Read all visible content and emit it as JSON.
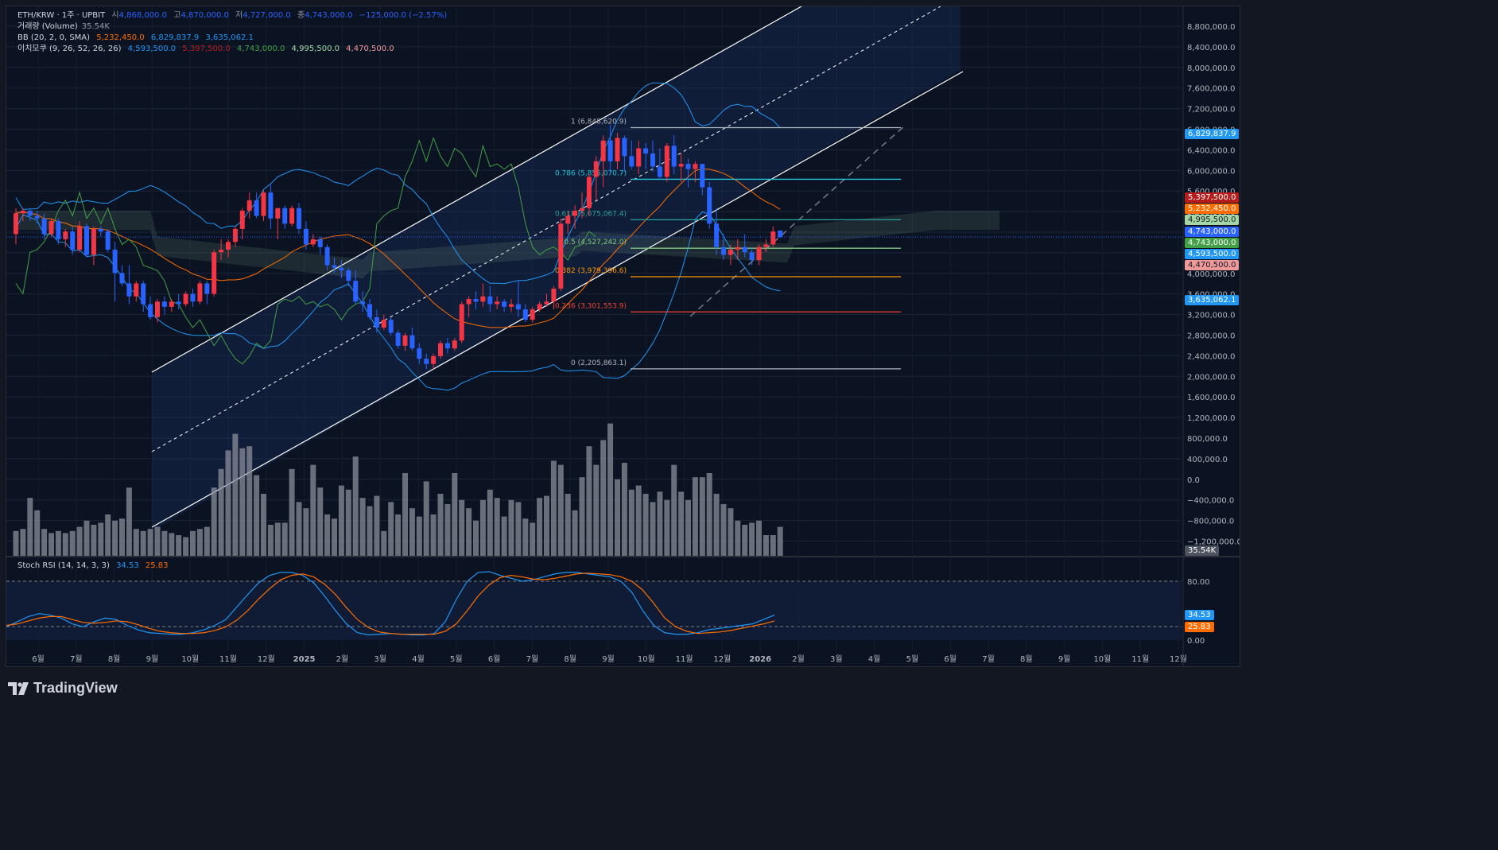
{
  "header": {
    "symbol": "ETH/KRW · 1주 · UPBIT",
    "ohlc": [
      {
        "label": "시",
        "value": "4,868,000.0"
      },
      {
        "label": "고",
        "value": "4,870,000.0"
      },
      {
        "label": "저",
        "value": "4,727,000.0"
      },
      {
        "label": "종",
        "value": "4,743,000.0"
      }
    ],
    "change": "−125,000.0 (−2.57%)",
    "volume_label": "거래량 (Volume)",
    "volume_value": "35.54K",
    "bb_label": "BB (20, 2, 0, SMA)",
    "bb_values": [
      "5,232,450.0",
      "6,829,837.9",
      "3,635,062.1"
    ],
    "ichimoku_label": "이치모쿠 (9, 26, 52, 26, 26)",
    "ichimoku_values": [
      "4,593,500.0",
      "5,397,500.0",
      "4,743,000.0",
      "4,995,500.0",
      "4,470,500.0"
    ],
    "stoch_label": "Stoch RSI (14, 14, 3, 3)",
    "stoch_values": [
      "34.53",
      "25.83"
    ]
  },
  "colors": {
    "up": "#f23645",
    "down": "#2962ff",
    "bb_upper": "#2196f3",
    "bb_basis": "#ff6d00",
    "tenkan": "#2196f3",
    "kijun": "#b71c1c",
    "chikou": "#43a047",
    "spanA": "#a5d6a7",
    "spanB": "#ef9a9a",
    "volume": "#8a8e99",
    "stoch_k": "#2196f3",
    "stoch_d": "#ff6d00",
    "channel": "#ffffff"
  },
  "chart_data": {
    "type": "candlestick",
    "y_ticks": [
      "8,800,000.0",
      "8,400,000.0",
      "8,000,000.0",
      "7,600,000.0",
      "7,200,000.0",
      "6,800,000.0",
      "6,400,000.0",
      "6,000,000.0",
      "5,600,000.0",
      "5,200,000.0",
      "4,800,000.0",
      "4,400,000.0",
      "4,000,000.0",
      "3,600,000.0",
      "3,200,000.0",
      "2,800,000.0",
      "2,400,000.0",
      "2,000,000.0",
      "1,600,000.0",
      "1,200,000.0",
      "800,000.0",
      "400,000.0",
      "0.0",
      "−400,000.0",
      "−800,000.0",
      "−1,200,000.0"
    ],
    "x_ticks": [
      "6월",
      "7월",
      "8월",
      "9월",
      "10월",
      "11월",
      "12월",
      "2025",
      "2월",
      "3월",
      "4월",
      "5월",
      "6월",
      "7월",
      "8월",
      "9월",
      "10월",
      "11월",
      "12월",
      "2026",
      "2월",
      "3월",
      "4월",
      "5월",
      "6월",
      "7월",
      "8월",
      "9월",
      "10월",
      "11월",
      "12월"
    ],
    "price_badges": [
      {
        "value": "6,829,837.9",
        "color": "#2196f3"
      },
      {
        "value": "5,397,500.0",
        "color": "#b71c1c"
      },
      {
        "value": "5,232,450.0",
        "color": "#ff6d00"
      },
      {
        "value": "4,995,500.0",
        "color": "#a5d6a7"
      },
      {
        "value": "4,743,000.0",
        "color": "#2962ff"
      },
      {
        "value": "4,743,000.0",
        "color": "#43a047"
      },
      {
        "value": "4,593,500.0",
        "color": "#2196f3"
      },
      {
        "value": "4,470,500.0",
        "color": "#ef9a9a"
      },
      {
        "value": "3,635,062.1",
        "color": "#2196f3"
      }
    ],
    "fib_levels": [
      {
        "ratio": "1",
        "price": 6848620.9,
        "label": "1 (6,848,620.9)",
        "color": "#b2b5be"
      },
      {
        "ratio": "0.786",
        "price": 5855070.7,
        "label": "0.786 (5,855,070.7)",
        "color": "#26c6da"
      },
      {
        "ratio": "0.618",
        "price": 5075067.4,
        "label": "0.618 (5,075,067.4)",
        "color": "#26a69a"
      },
      {
        "ratio": "0.5",
        "price": 4527242.0,
        "label": "0.5 (4,527,242.0)",
        "color": "#81c784"
      },
      {
        "ratio": "0.382",
        "price": 3979396.6,
        "label": "0.382 (3,979,396.6)",
        "color": "#ff9800"
      },
      {
        "ratio": "0.236",
        "price": 3301553.9,
        "label": "0.236 (3,301,553.9)",
        "color": "#f44336"
      },
      {
        "ratio": "0",
        "price": 2205863.1,
        "label": "0 (2,205,863.1)",
        "color": "#b2b5be"
      }
    ],
    "candles": [
      [
        4800000,
        5300000,
        4600000,
        5200000
      ],
      [
        5200000,
        5300000,
        5050000,
        5250000
      ],
      [
        5250000,
        5300000,
        5050000,
        5150000
      ],
      [
        5150000,
        5250000,
        5000000,
        5100000
      ],
      [
        5100000,
        5200000,
        4700000,
        4800000
      ],
      [
        4800000,
        5100000,
        4750000,
        5050000
      ],
      [
        5050000,
        5100000,
        4600000,
        4700000
      ],
      [
        4700000,
        4900000,
        4550000,
        4850000
      ],
      [
        4850000,
        4950000,
        4400000,
        4500000
      ],
      [
        4500000,
        5050000,
        4450000,
        4950000
      ],
      [
        4950000,
        5000000,
        4350000,
        4400000
      ],
      [
        4400000,
        4950000,
        4200000,
        4900000
      ],
      [
        4900000,
        4950000,
        4750000,
        4850000
      ],
      [
        4850000,
        4900000,
        4450000,
        4500000
      ],
      [
        4500000,
        4650000,
        3500000,
        4050000
      ],
      [
        4050000,
        4200000,
        3800000,
        3850000
      ],
      [
        3850000,
        4200000,
        3450000,
        3600000
      ],
      [
        3600000,
        3900000,
        3500000,
        3850000
      ],
      [
        3850000,
        3900000,
        3300000,
        3450000
      ],
      [
        3450000,
        3600000,
        3150000,
        3200000
      ],
      [
        3200000,
        3550000,
        3100000,
        3500000
      ],
      [
        3500000,
        3600000,
        3250000,
        3400000
      ],
      [
        3400000,
        3550000,
        3300000,
        3500000
      ],
      [
        3500000,
        3650000,
        3350000,
        3450000
      ],
      [
        3450000,
        3700000,
        3400000,
        3650000
      ],
      [
        3650000,
        3750000,
        3400000,
        3500000
      ],
      [
        3500000,
        3900000,
        3450000,
        3850000
      ],
      [
        3850000,
        3900000,
        3450000,
        3650000
      ],
      [
        3650000,
        4500000,
        3600000,
        4450000
      ],
      [
        4450000,
        4700000,
        4300000,
        4500000
      ],
      [
        4500000,
        4700000,
        4350000,
        4650000
      ],
      [
        4650000,
        4950000,
        4550000,
        4900000
      ],
      [
        4900000,
        5300000,
        4700000,
        5250000
      ],
      [
        5250000,
        5600000,
        5100000,
        5450000
      ],
      [
        5450000,
        5600000,
        5100000,
        5150000
      ],
      [
        5150000,
        5650000,
        5050000,
        5600000
      ],
      [
        5600000,
        5750000,
        4900000,
        5100000
      ],
      [
        5100000,
        5300000,
        4700000,
        5300000
      ],
      [
        5300000,
        5350000,
        4900000,
        5000000
      ],
      [
        5000000,
        5350000,
        4950000,
        5300000
      ],
      [
        5300000,
        5400000,
        4800000,
        4900000
      ],
      [
        4900000,
        5050000,
        4500000,
        4600000
      ],
      [
        4600000,
        4800000,
        4550000,
        4700000
      ],
      [
        4700000,
        4750000,
        4400000,
        4550000
      ],
      [
        4550000,
        4600000,
        4100000,
        4200000
      ],
      [
        4200000,
        4350000,
        4050000,
        4150000
      ],
      [
        4150000,
        4300000,
        3950000,
        4100000
      ],
      [
        4100000,
        4150000,
        3800000,
        3900000
      ],
      [
        3900000,
        4100000,
        3450000,
        3500000
      ],
      [
        3500000,
        3700000,
        3300000,
        3450000
      ],
      [
        3450000,
        3550000,
        3150000,
        3200000
      ],
      [
        3200000,
        3350000,
        2900000,
        3000000
      ],
      [
        3000000,
        3250000,
        2950000,
        3150000
      ],
      [
        3150000,
        3200000,
        2850000,
        2900000
      ],
      [
        2900000,
        2950000,
        2600000,
        2650000
      ],
      [
        2650000,
        2900000,
        2550000,
        2850000
      ],
      [
        2850000,
        3000000,
        2550000,
        2600000
      ],
      [
        2600000,
        2700000,
        2300000,
        2400000
      ],
      [
        2400000,
        2500000,
        2200000,
        2300000
      ],
      [
        2300000,
        2500000,
        2200000,
        2450000
      ],
      [
        2450000,
        2750000,
        2400000,
        2700000
      ],
      [
        2700000,
        2800000,
        2500000,
        2600000
      ],
      [
        2600000,
        2800000,
        2550000,
        2750000
      ],
      [
        2750000,
        3500000,
        2700000,
        3450000
      ],
      [
        3450000,
        3600000,
        3200000,
        3550000
      ],
      [
        3550000,
        3700000,
        3350000,
        3500000
      ],
      [
        3500000,
        3850000,
        3400000,
        3600000
      ],
      [
        3600000,
        3800000,
        3300000,
        3450000
      ],
      [
        3450000,
        3600000,
        3350000,
        3500000
      ],
      [
        3500000,
        3550000,
        3300000,
        3400000
      ],
      [
        3400000,
        3550000,
        3300000,
        3450000
      ],
      [
        3450000,
        3900000,
        3200000,
        3350000
      ],
      [
        3350000,
        3450000,
        3100000,
        3150000
      ],
      [
        3150000,
        3400000,
        3100000,
        3350000
      ],
      [
        3350000,
        3500000,
        3300000,
        3450000
      ],
      [
        3450000,
        3650000,
        3400000,
        3500000
      ],
      [
        3500000,
        3800000,
        3350000,
        3750000
      ],
      [
        3750000,
        5100000,
        3700000,
        5000000
      ],
      [
        5000000,
        5250000,
        4800000,
        5150000
      ],
      [
        5150000,
        5350000,
        4900000,
        5250000
      ],
      [
        5250000,
        5600000,
        5100000,
        5300000
      ],
      [
        5300000,
        5950000,
        5150000,
        5900000
      ],
      [
        5900000,
        6300000,
        5450000,
        6200000
      ],
      [
        6200000,
        6700000,
        5700000,
        6600000
      ],
      [
        6600000,
        6900000,
        6000000,
        6200000
      ],
      [
        6200000,
        6750000,
        6050000,
        6650000
      ],
      [
        6650000,
        6700000,
        6000000,
        6300000
      ],
      [
        6300000,
        6600000,
        6050000,
        6100000
      ],
      [
        6100000,
        6600000,
        5950000,
        6450000
      ],
      [
        6450000,
        6550000,
        6050000,
        6350000
      ],
      [
        6350000,
        6600000,
        6000000,
        6100000
      ],
      [
        6100000,
        6450000,
        5850000,
        5900000
      ],
      [
        5900000,
        6550000,
        5800000,
        6500000
      ],
      [
        6500000,
        6700000,
        5950000,
        6100000
      ],
      [
        6100000,
        6350000,
        5800000,
        6150000
      ],
      [
        6150000,
        6250000,
        5700000,
        6050000
      ],
      [
        6050000,
        6200000,
        5800000,
        6150000
      ],
      [
        6150000,
        6150000,
        5550000,
        5700000
      ],
      [
        5700000,
        5800000,
        4900000,
        5000000
      ],
      [
        5000000,
        5300000,
        4400000,
        4550000
      ],
      [
        4550000,
        4800000,
        4300000,
        4400000
      ],
      [
        4400000,
        4600000,
        4200000,
        4500000
      ],
      [
        4500000,
        4700000,
        4300000,
        4550000
      ],
      [
        4550000,
        4800000,
        4350000,
        4450000
      ],
      [
        4450000,
        4550000,
        4200000,
        4300000
      ],
      [
        4300000,
        4600000,
        4200000,
        4550000
      ],
      [
        4550000,
        4700000,
        4450000,
        4600000
      ],
      [
        4600000,
        4950000,
        4550000,
        4850000
      ],
      [
        4868000,
        4870000,
        4727000,
        4743000
      ]
    ],
    "volume": [
      12,
      13,
      28,
      22,
      13,
      11,
      12,
      11,
      12,
      14,
      17,
      15,
      16,
      20,
      17,
      18,
      33,
      13,
      12,
      13,
      14,
      12,
      11,
      10,
      9,
      12,
      13,
      14,
      33,
      42,
      51,
      59,
      52,
      53,
      39,
      30,
      15,
      16,
      16,
      42,
      26,
      23,
      44,
      33,
      20,
      18,
      34,
      32,
      48,
      28,
      24,
      29,
      12,
      26,
      20,
      40,
      23,
      19,
      36,
      20,
      30,
      25,
      40,
      27,
      23,
      17,
      27,
      32,
      28,
      19,
      27,
      26,
      18,
      16,
      28,
      29,
      46,
      44,
      30,
      22,
      38,
      53,
      44,
      56,
      64,
      37,
      45,
      32,
      34,
      30,
      26,
      31,
      27,
      44,
      31,
      27,
      38,
      38,
      40,
      30,
      25,
      23,
      17,
      15,
      16,
      17,
      10,
      10,
      14
    ],
    "stoch_k": [
      18,
      25,
      32,
      36,
      34,
      30,
      22,
      18,
      25,
      30,
      28,
      20,
      14,
      10,
      9,
      8,
      8,
      10,
      14,
      20,
      28,
      45,
      62,
      78,
      88,
      92,
      92,
      88,
      78,
      60,
      40,
      22,
      10,
      7,
      8,
      9,
      8,
      7,
      7,
      9,
      25,
      55,
      80,
      92,
      93,
      88,
      84,
      80,
      82,
      86,
      90,
      92,
      92,
      90,
      88,
      86,
      80,
      65,
      40,
      20,
      10,
      8,
      8,
      10,
      14,
      16,
      18,
      20,
      22,
      28,
      34
    ],
    "stoch_d": [
      20,
      22,
      26,
      30,
      32,
      32,
      28,
      24,
      23,
      24,
      26,
      25,
      21,
      16,
      12,
      10,
      9,
      9,
      10,
      13,
      18,
      27,
      40,
      56,
      70,
      82,
      88,
      90,
      86,
      76,
      62,
      44,
      28,
      17,
      11,
      9,
      8,
      8,
      8,
      8,
      12,
      22,
      40,
      60,
      75,
      85,
      88,
      86,
      83,
      82,
      84,
      87,
      90,
      91,
      90,
      89,
      86,
      80,
      68,
      50,
      30,
      18,
      12,
      9,
      10,
      11,
      13,
      16,
      19,
      22,
      26
    ]
  }
}
